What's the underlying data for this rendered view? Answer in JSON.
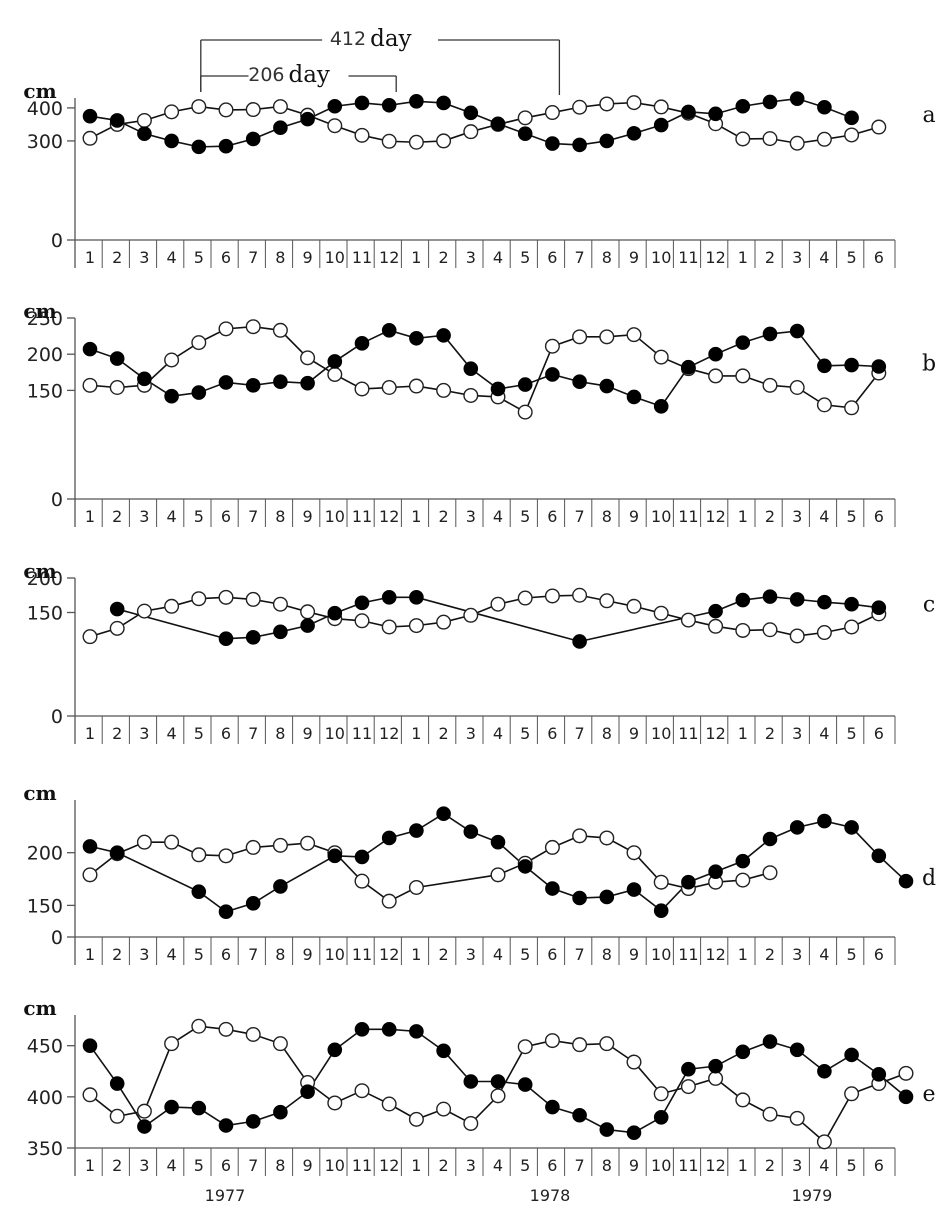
{
  "chart_data": {
    "type": "line",
    "months": [
      "1",
      "2",
      "3",
      "4",
      "5",
      "6",
      "7",
      "8",
      "9",
      "10",
      "11",
      "12",
      "1",
      "2",
      "3",
      "4",
      "5",
      "6",
      "7",
      "8",
      "9",
      "10",
      "11",
      "12",
      "1",
      "2",
      "3",
      "4",
      "5",
      "6"
    ],
    "years": [
      "1977",
      "1978",
      "1979"
    ],
    "brackets": [
      {
        "value": "412",
        "unit": "day",
        "from_index": 4,
        "to_index": 17
      },
      {
        "value": "206",
        "unit": "day",
        "from_index": 4,
        "to_index": 11
      }
    ],
    "panels": [
      {
        "letter": "a",
        "unit": "cm",
        "ylim": [
          0,
          430
        ],
        "yticks": [
          "400",
          "300",
          "0"
        ],
        "ytick_values": [
          400,
          300,
          0
        ],
        "filled": [
          [
            0,
            375
          ],
          [
            1,
            362
          ],
          [
            2,
            322
          ],
          [
            3,
            300
          ],
          [
            4,
            282
          ],
          [
            5,
            284
          ],
          [
            6,
            306
          ],
          [
            7,
            340
          ],
          [
            8,
            366
          ],
          [
            9,
            405
          ],
          [
            10,
            415
          ],
          [
            11,
            408
          ],
          [
            12,
            420
          ],
          [
            13,
            415
          ],
          [
            14,
            385
          ],
          [
            15,
            352
          ],
          [
            16,
            322
          ],
          [
            17,
            292
          ],
          [
            18,
            288
          ],
          [
            19,
            300
          ],
          [
            20,
            323
          ],
          [
            21,
            348
          ],
          [
            22,
            388
          ],
          [
            23,
            382
          ],
          [
            24,
            405
          ],
          [
            25,
            418
          ],
          [
            26,
            428
          ],
          [
            27,
            402
          ],
          [
            28,
            370
          ]
        ],
        "open": [
          [
            0,
            308
          ],
          [
            1,
            350
          ],
          [
            2,
            362
          ],
          [
            3,
            388
          ],
          [
            4,
            404
          ],
          [
            5,
            394
          ],
          [
            6,
            395
          ],
          [
            7,
            404
          ],
          [
            8,
            378
          ],
          [
            9,
            346
          ],
          [
            10,
            317
          ],
          [
            11,
            299
          ],
          [
            12,
            296
          ],
          [
            13,
            300
          ],
          [
            14,
            328
          ],
          [
            15,
            350
          ],
          [
            16,
            370
          ],
          [
            17,
            386
          ],
          [
            18,
            402
          ],
          [
            19,
            412
          ],
          [
            20,
            416
          ],
          [
            21,
            403
          ],
          [
            22,
            384
          ],
          [
            23,
            352
          ],
          [
            24,
            306
          ],
          [
            25,
            307
          ],
          [
            26,
            293
          ],
          [
            27,
            305
          ],
          [
            28,
            318
          ],
          [
            29,
            342
          ]
        ]
      },
      {
        "letter": "b",
        "unit": "cm",
        "ylim": [
          0,
          250
        ],
        "yticks": [
          "250",
          "200",
          "150",
          "0"
        ],
        "ytick_values": [
          250,
          200,
          150,
          0
        ],
        "filled": [
          [
            0,
            207
          ],
          [
            1,
            194
          ],
          [
            2,
            166
          ],
          [
            3,
            142
          ],
          [
            4,
            147
          ],
          [
            5,
            161
          ],
          [
            6,
            157
          ],
          [
            7,
            162
          ],
          [
            8,
            160
          ],
          [
            9,
            190
          ],
          [
            10,
            215
          ],
          [
            11,
            233
          ],
          [
            12,
            222
          ],
          [
            13,
            226
          ],
          [
            14,
            180
          ],
          [
            15,
            152
          ],
          [
            16,
            158
          ],
          [
            17,
            172
          ],
          [
            18,
            162
          ],
          [
            19,
            156
          ],
          [
            20,
            141
          ],
          [
            21,
            128
          ],
          [
            22,
            182
          ],
          [
            23,
            200
          ],
          [
            24,
            216
          ],
          [
            25,
            228
          ],
          [
            26,
            232
          ],
          [
            27,
            184
          ],
          [
            28,
            185
          ],
          [
            29,
            183
          ]
        ],
        "open": [
          [
            0,
            157
          ],
          [
            1,
            154
          ],
          [
            2,
            157
          ],
          [
            3,
            192
          ],
          [
            4,
            216
          ],
          [
            5,
            235
          ],
          [
            6,
            238
          ],
          [
            7,
            233
          ],
          [
            8,
            195
          ],
          [
            9,
            172
          ],
          [
            10,
            152
          ],
          [
            11,
            154
          ],
          [
            12,
            156
          ],
          [
            13,
            150
          ],
          [
            14,
            143
          ],
          [
            15,
            141
          ],
          [
            16,
            120
          ],
          [
            17,
            211
          ],
          [
            18,
            224
          ],
          [
            19,
            224
          ],
          [
            20,
            227
          ],
          [
            21,
            196
          ],
          [
            22,
            180
          ],
          [
            23,
            170
          ],
          [
            24,
            170
          ],
          [
            25,
            157
          ],
          [
            26,
            154
          ],
          [
            27,
            130
          ],
          [
            28,
            126
          ],
          [
            29,
            174
          ]
        ]
      },
      {
        "letter": "c",
        "unit": "cm",
        "ylim": [
          0,
          200
        ],
        "yticks": [
          "200",
          "150",
          "0"
        ],
        "ytick_values": [
          200,
          150,
          0
        ],
        "filled": [
          [
            1,
            155
          ],
          [
            5,
            112
          ],
          [
            6,
            114
          ],
          [
            7,
            122
          ],
          [
            8,
            131
          ],
          [
            9,
            149
          ],
          [
            10,
            164
          ],
          [
            11,
            172
          ],
          [
            12,
            172
          ],
          [
            18,
            108
          ],
          [
            23,
            152
          ],
          [
            24,
            168
          ],
          [
            25,
            173
          ],
          [
            26,
            169
          ],
          [
            27,
            165
          ],
          [
            28,
            162
          ],
          [
            29,
            157
          ]
        ],
        "open": [
          [
            0,
            115
          ],
          [
            1,
            127
          ],
          [
            2,
            152
          ],
          [
            3,
            159
          ],
          [
            4,
            170
          ],
          [
            5,
            172
          ],
          [
            6,
            169
          ],
          [
            7,
            162
          ],
          [
            8,
            151
          ],
          [
            9,
            141
          ],
          [
            10,
            138
          ],
          [
            11,
            129
          ],
          [
            12,
            131
          ],
          [
            13,
            136
          ],
          [
            14,
            146
          ],
          [
            15,
            162
          ],
          [
            16,
            171
          ],
          [
            17,
            174
          ],
          [
            18,
            175
          ],
          [
            19,
            167
          ],
          [
            20,
            159
          ],
          [
            21,
            149
          ],
          [
            22,
            139
          ],
          [
            23,
            130
          ],
          [
            24,
            124
          ],
          [
            25,
            125
          ],
          [
            26,
            116
          ],
          [
            27,
            121
          ],
          [
            28,
            129
          ],
          [
            29,
            148
          ]
        ]
      },
      {
        "letter": "d",
        "unit": "cm",
        "ylim": [
          120,
          250
        ],
        "yticks": [
          "200",
          "150",
          "0"
        ],
        "ytick_values": [
          200,
          150,
          120
        ],
        "filled": [
          [
            0,
            206
          ],
          [
            1,
            200
          ],
          [
            4,
            163
          ],
          [
            5,
            144
          ],
          [
            6,
            152
          ],
          [
            7,
            168
          ],
          [
            9,
            197
          ],
          [
            10,
            196
          ],
          [
            11,
            214
          ],
          [
            12,
            221
          ],
          [
            13,
            237
          ],
          [
            14,
            220
          ],
          [
            15,
            210
          ],
          [
            16,
            187
          ],
          [
            17,
            166
          ],
          [
            18,
            157
          ],
          [
            19,
            158
          ],
          [
            20,
            165
          ],
          [
            21,
            145
          ],
          [
            22,
            172
          ],
          [
            23,
            182
          ],
          [
            24,
            192
          ],
          [
            25,
            213
          ],
          [
            26,
            224
          ],
          [
            27,
            230
          ],
          [
            28,
            224
          ],
          [
            29,
            197
          ],
          [
            30,
            173
          ]
        ],
        "open": [
          [
            0,
            179
          ],
          [
            1,
            199
          ],
          [
            2,
            210
          ],
          [
            3,
            210
          ],
          [
            4,
            198
          ],
          [
            5,
            197
          ],
          [
            6,
            205
          ],
          [
            7,
            207
          ],
          [
            8,
            209
          ],
          [
            9,
            200
          ],
          [
            10,
            173
          ],
          [
            11,
            154
          ],
          [
            12,
            167
          ],
          [
            15,
            179
          ],
          [
            16,
            190
          ],
          [
            17,
            205
          ],
          [
            18,
            216
          ],
          [
            19,
            214
          ],
          [
            20,
            200
          ],
          [
            21,
            172
          ],
          [
            22,
            166
          ],
          [
            23,
            172
          ],
          [
            24,
            174
          ],
          [
            25,
            181
          ]
        ]
      },
      {
        "letter": "e",
        "unit": "cm",
        "ylim": [
          350,
          480
        ],
        "yticks": [
          "450",
          "400",
          "350"
        ],
        "ytick_values": [
          450,
          400,
          350
        ],
        "filled": [
          [
            0,
            450
          ],
          [
            1,
            413
          ],
          [
            2,
            371
          ],
          [
            3,
            390
          ],
          [
            4,
            389
          ],
          [
            5,
            372
          ],
          [
            6,
            376
          ],
          [
            7,
            385
          ],
          [
            8,
            405
          ],
          [
            9,
            446
          ],
          [
            10,
            466
          ],
          [
            11,
            466
          ],
          [
            12,
            464
          ],
          [
            13,
            445
          ],
          [
            14,
            415
          ],
          [
            15,
            415
          ],
          [
            16,
            412
          ],
          [
            17,
            390
          ],
          [
            18,
            382
          ],
          [
            19,
            368
          ],
          [
            20,
            365
          ],
          [
            21,
            380
          ],
          [
            22,
            427
          ],
          [
            23,
            430
          ],
          [
            24,
            444
          ],
          [
            25,
            454
          ],
          [
            26,
            446
          ],
          [
            27,
            425
          ],
          [
            28,
            441
          ],
          [
            29,
            422
          ],
          [
            30,
            400
          ]
        ],
        "open": [
          [
            0,
            402
          ],
          [
            1,
            381
          ],
          [
            2,
            386
          ],
          [
            3,
            452
          ],
          [
            4,
            469
          ],
          [
            5,
            466
          ],
          [
            6,
            461
          ],
          [
            7,
            452
          ],
          [
            8,
            414
          ],
          [
            9,
            394
          ],
          [
            10,
            406
          ],
          [
            11,
            393
          ],
          [
            12,
            378
          ],
          [
            13,
            388
          ],
          [
            14,
            374
          ],
          [
            15,
            401
          ],
          [
            16,
            449
          ],
          [
            17,
            455
          ],
          [
            18,
            451
          ],
          [
            19,
            452
          ],
          [
            20,
            434
          ],
          [
            21,
            403
          ],
          [
            22,
            410
          ],
          [
            23,
            418
          ],
          [
            24,
            397
          ],
          [
            25,
            383
          ],
          [
            26,
            379
          ],
          [
            27,
            356
          ],
          [
            28,
            403
          ],
          [
            29,
            413
          ],
          [
            30,
            423
          ]
        ]
      }
    ]
  }
}
